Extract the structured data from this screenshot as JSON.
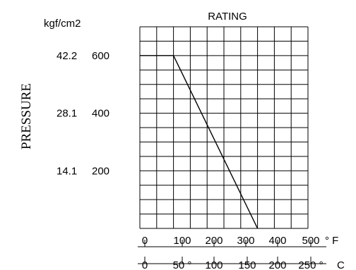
{
  "chart_data": {
    "type": "line",
    "title": "RATING",
    "ylabel": "PRESSURE",
    "yunit_alt": "kgf/cm2",
    "y_ticks": [
      {
        "value": 600,
        "alt": "42.2"
      },
      {
        "value": 400,
        "alt": "28.1"
      },
      {
        "value": 200,
        "alt": "14.1"
      }
    ],
    "x_ticks_f": [
      "0",
      "100",
      "200",
      "300",
      "400",
      "500"
    ],
    "x_unit_f": "° F",
    "x_ticks_c": [
      "0",
      "50 °",
      "100",
      "150",
      "200",
      "250 °"
    ],
    "x_unit_c": "C",
    "xlim": [
      0,
      500
    ],
    "ylim": [
      0,
      700
    ],
    "x_grid_step": 50,
    "y_grid_step": 50,
    "grid": true,
    "series": [
      {
        "x": [
          0,
          100,
          350
        ],
        "y": [
          600,
          600,
          0
        ]
      }
    ]
  }
}
